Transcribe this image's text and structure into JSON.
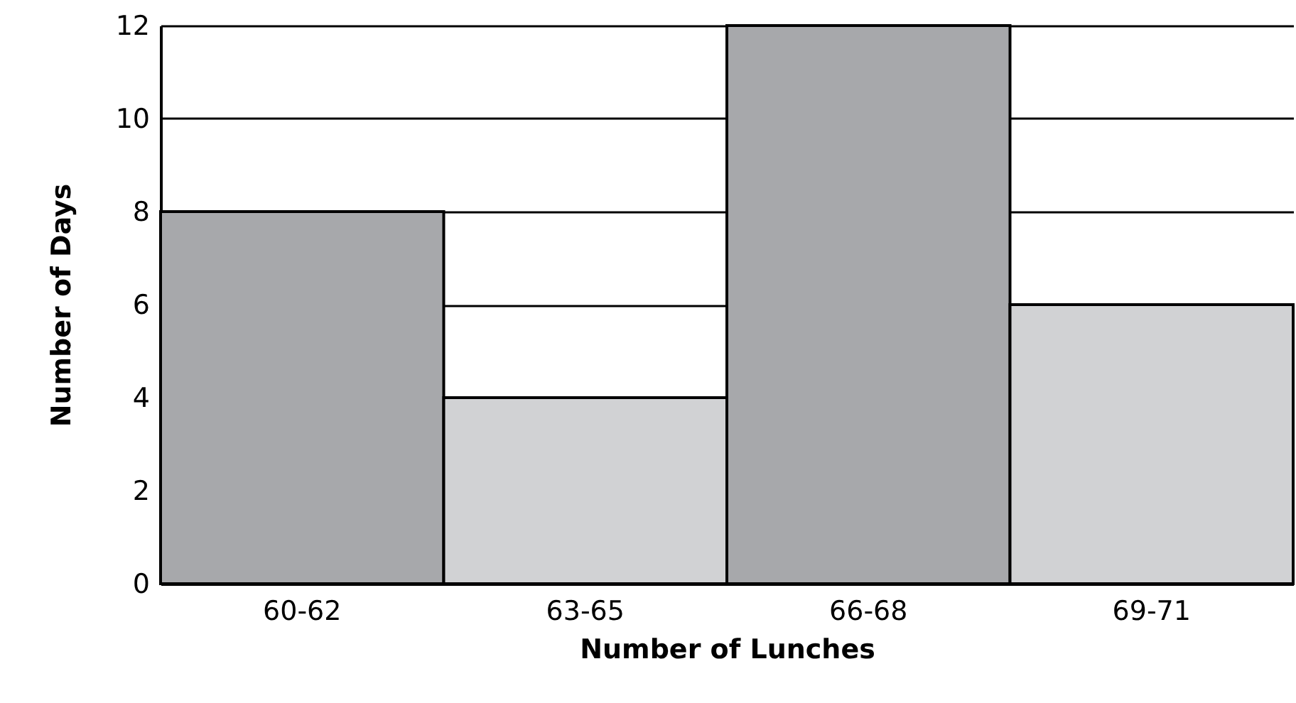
{
  "chart_data": {
    "type": "bar",
    "xlabel": "Number of Lunches",
    "ylabel": "Number of Days",
    "categories": [
      "60-62",
      "63-65",
      "66-68",
      "69-71"
    ],
    "values": [
      8,
      4,
      12,
      6
    ],
    "colors": [
      "#a7a8ab",
      "#d1d2d4",
      "#a7a8ab",
      "#d1d2d4"
    ],
    "ylim": [
      0,
      12
    ],
    "yticks": [
      0,
      2,
      4,
      6,
      8,
      10,
      12
    ],
    "grid": "y"
  }
}
